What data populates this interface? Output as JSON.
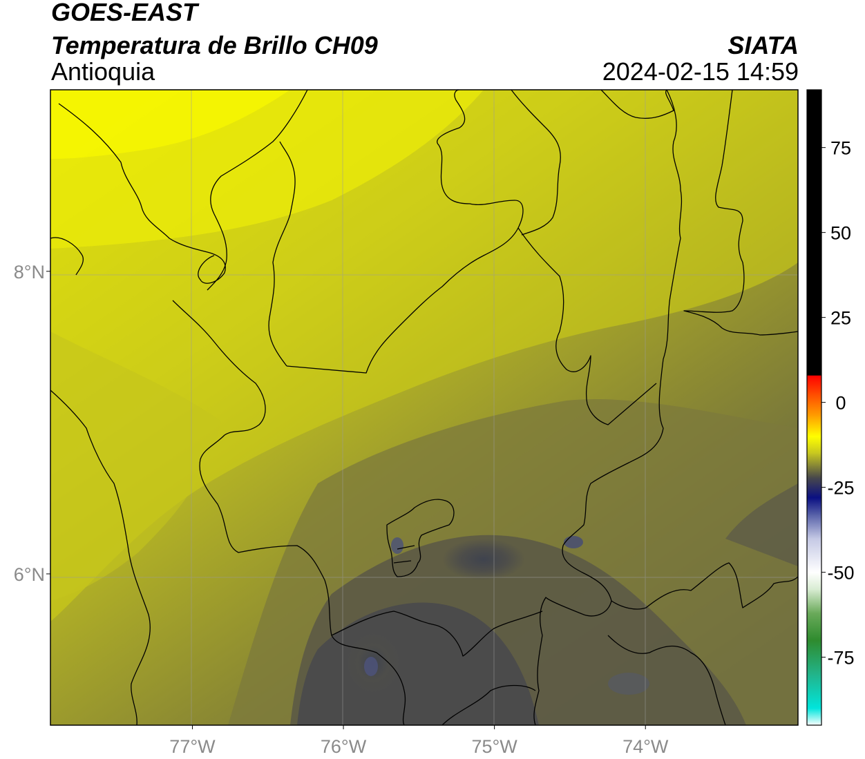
{
  "header": {
    "satellite": "GOES-EAST",
    "product": "Temperatura de Brillo CH09",
    "region": "Antioquia",
    "agency": "SIATA",
    "timestamp": "2024-02-15 14:59"
  },
  "map": {
    "lon_range": [
      -77.94,
      -72.99
    ],
    "lat_range": [
      5.0,
      9.2
    ],
    "x_ticks": [
      {
        "value": -77,
        "label": "77°W"
      },
      {
        "value": -76,
        "label": "76°W"
      },
      {
        "value": -75,
        "label": "75°W"
      },
      {
        "value": -74,
        "label": "74°W"
      }
    ],
    "y_ticks": [
      {
        "value": 8,
        "label": "8°N"
      },
      {
        "value": 6,
        "label": "6°N"
      }
    ],
    "gridlines": true
  },
  "colorbar": {
    "range": [
      -95,
      92
    ],
    "ticks": [
      {
        "value": 75,
        "label": "75"
      },
      {
        "value": 50,
        "label": "50"
      },
      {
        "value": 25,
        "label": "25"
      },
      {
        "value": 0,
        "label": "0"
      },
      {
        "value": -25,
        "label": "-25"
      },
      {
        "value": -50,
        "label": "-50"
      },
      {
        "value": -75,
        "label": "-75"
      }
    ],
    "stops": [
      {
        "value": -95,
        "color": "#ffffff"
      },
      {
        "value": -90,
        "color": "#00e5dc"
      },
      {
        "value": -80,
        "color": "#22b48a"
      },
      {
        "value": -70,
        "color": "#2e8b2e"
      },
      {
        "value": -62,
        "color": "#6aaa5a"
      },
      {
        "value": -55,
        "color": "#d8ecd2"
      },
      {
        "value": -50,
        "color": "#ffffff"
      },
      {
        "value": -40,
        "color": "#c4c8e4"
      },
      {
        "value": -33,
        "color": "#5660a8"
      },
      {
        "value": -28,
        "color": "#0a0f82"
      },
      {
        "value": -22,
        "color": "#4a4a4a"
      },
      {
        "value": -15,
        "color": "#c6c620"
      },
      {
        "value": -10,
        "color": "#ffff00"
      },
      {
        "value": -4,
        "color": "#ffa000"
      },
      {
        "value": 3,
        "color": "#ff4400"
      },
      {
        "value": 8,
        "color": "#ff0000"
      },
      {
        "value": 8.01,
        "color": "#000000"
      },
      {
        "value": 92,
        "color": "#000000"
      }
    ]
  }
}
